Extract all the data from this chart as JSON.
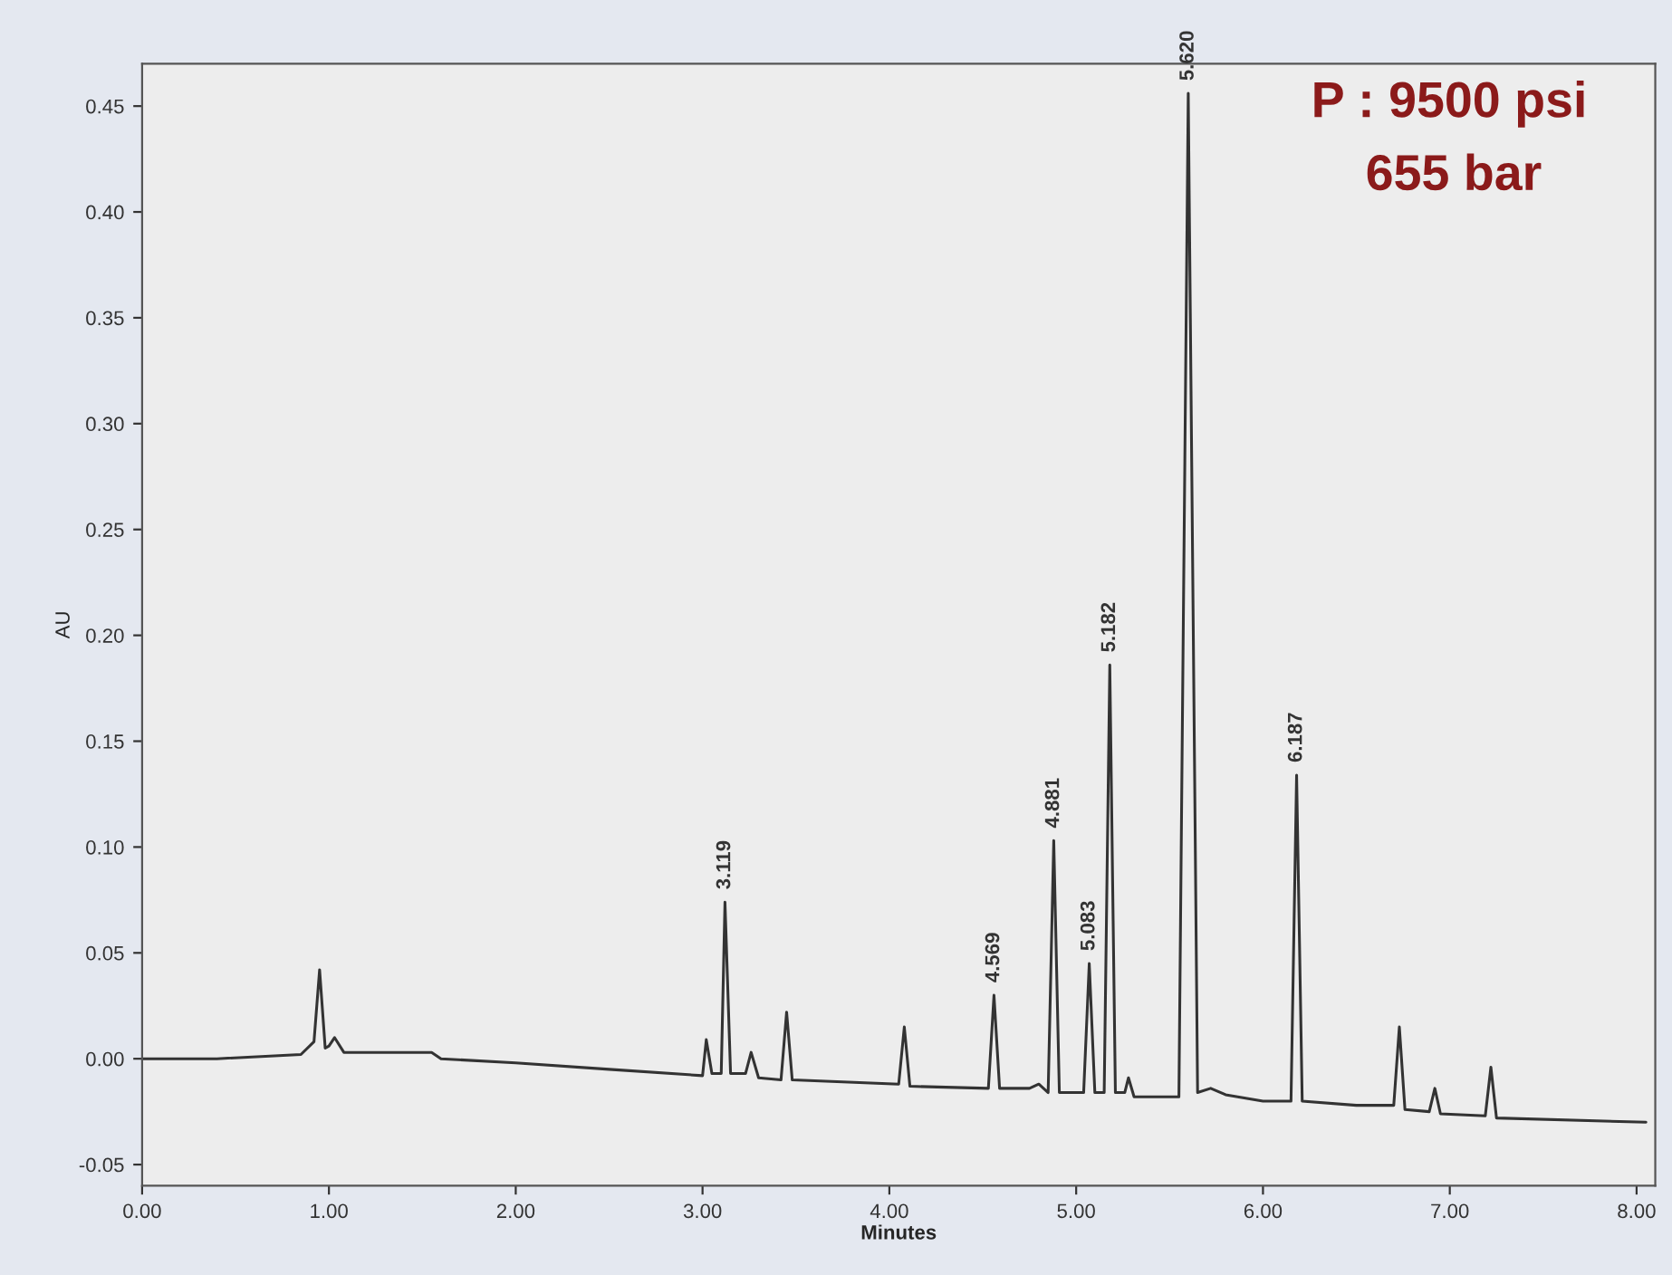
{
  "chart_data": {
    "type": "line",
    "xlabel": "Minutes",
    "ylabel": "AU",
    "xlim": [
      0,
      8.1
    ],
    "ylim": [
      -0.06,
      0.47
    ],
    "xticks": [
      {
        "value": 0,
        "label": "0.00"
      },
      {
        "value": 1,
        "label": "1.00"
      },
      {
        "value": 2,
        "label": "2.00"
      },
      {
        "value": 3,
        "label": "3.00"
      },
      {
        "value": 4,
        "label": "4.00"
      },
      {
        "value": 5,
        "label": "5.00"
      },
      {
        "value": 6,
        "label": "6.00"
      },
      {
        "value": 7,
        "label": "7.00"
      },
      {
        "value": 8,
        "label": "8.00"
      }
    ],
    "yticks": [
      {
        "value": -0.05,
        "label": "-0.05"
      },
      {
        "value": 0,
        "label": "0.00"
      },
      {
        "value": 0.05,
        "label": "0.05"
      },
      {
        "value": 0.1,
        "label": "0.10"
      },
      {
        "value": 0.15,
        "label": "0.15"
      },
      {
        "value": 0.2,
        "label": "0.20"
      },
      {
        "value": 0.25,
        "label": "0.25"
      },
      {
        "value": 0.3,
        "label": "0.30"
      },
      {
        "value": 0.35,
        "label": "0.35"
      },
      {
        "value": 0.4,
        "label": "0.40"
      },
      {
        "value": 0.45,
        "label": "0.45"
      }
    ],
    "grid": false,
    "legend": false,
    "marker": "none",
    "line_style": "solid",
    "series": [
      {
        "color": "#333333",
        "x": [
          0.0,
          0.4,
          0.85,
          0.92,
          0.95,
          0.98,
          1.0,
          1.03,
          1.08,
          1.3,
          1.55,
          1.6,
          2.0,
          2.5,
          3.0,
          3.02,
          3.05,
          3.1,
          3.12,
          3.15,
          3.23,
          3.26,
          3.3,
          3.42,
          3.45,
          3.48,
          4.05,
          4.08,
          4.11,
          4.53,
          4.56,
          4.59,
          4.75,
          4.8,
          4.85,
          4.88,
          4.91,
          5.04,
          5.07,
          5.1,
          5.15,
          5.18,
          5.21,
          5.26,
          5.28,
          5.31,
          5.55,
          5.6,
          5.65,
          5.72,
          5.8,
          6.0,
          6.15,
          6.18,
          6.21,
          6.5,
          6.7,
          6.73,
          6.76,
          6.89,
          6.92,
          6.95,
          7.19,
          7.22,
          7.25,
          8.05
        ],
        "values": [
          0.0,
          0.0,
          0.002,
          0.008,
          0.042,
          0.005,
          0.006,
          0.01,
          0.003,
          0.003,
          0.003,
          0.0,
          -0.002,
          -0.005,
          -0.008,
          0.009,
          -0.007,
          -0.007,
          0.074,
          -0.007,
          -0.007,
          0.003,
          -0.009,
          -0.01,
          0.022,
          -0.01,
          -0.012,
          0.015,
          -0.013,
          -0.014,
          0.03,
          -0.014,
          -0.014,
          -0.012,
          -0.016,
          0.103,
          -0.016,
          -0.016,
          0.045,
          -0.016,
          -0.016,
          0.186,
          -0.016,
          -0.016,
          -0.009,
          -0.018,
          -0.018,
          0.456,
          -0.016,
          -0.014,
          -0.017,
          -0.02,
          -0.02,
          0.134,
          -0.02,
          -0.022,
          -0.022,
          0.015,
          -0.024,
          -0.025,
          -0.014,
          -0.026,
          -0.027,
          -0.004,
          -0.028,
          -0.03
        ]
      }
    ],
    "annotations": [
      {
        "text": "3.119",
        "x": 3.12,
        "y": 0.074
      },
      {
        "text": "4.569",
        "x": 4.56,
        "y": 0.03
      },
      {
        "text": "4.881",
        "x": 4.88,
        "y": 0.103
      },
      {
        "text": "5.083",
        "x": 5.07,
        "y": 0.045
      },
      {
        "text": "5.182",
        "x": 5.18,
        "y": 0.186
      },
      {
        "text": "5.620",
        "x": 5.6,
        "y": 0.456
      },
      {
        "text": "6.187",
        "x": 6.18,
        "y": 0.134
      },
      "P : 9500 psi",
      "655 bar"
    ]
  }
}
